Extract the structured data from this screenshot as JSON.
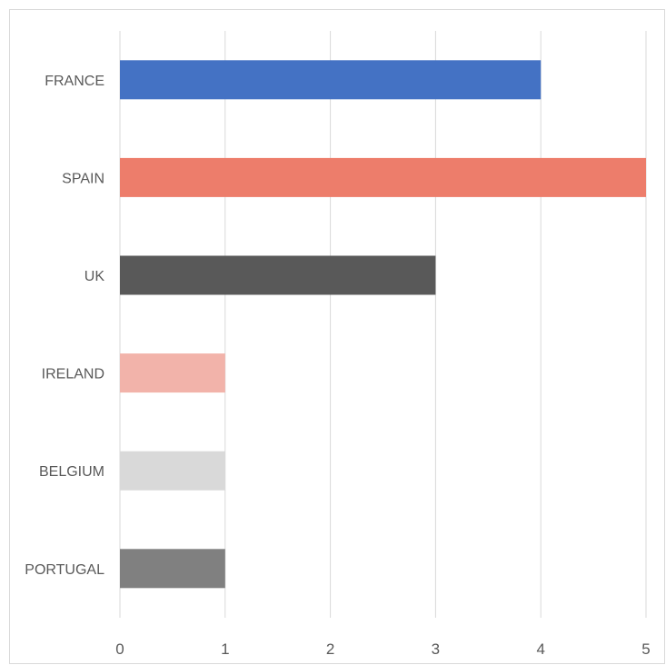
{
  "chart_data": {
    "type": "bar",
    "orientation": "horizontal",
    "title": "",
    "xlabel": "",
    "ylabel": "",
    "categories": [
      "FRANCE",
      "SPAIN",
      "UK",
      "IRELAND",
      "BELGIUM",
      "PORTUGAL"
    ],
    "values": [
      4,
      5,
      3,
      1,
      1,
      1
    ],
    "colors": [
      "#4472C4",
      "#ED7D6B",
      "#595959",
      "#F2B3AA",
      "#D9D9D9",
      "#808080"
    ],
    "xlim": [
      0,
      5
    ],
    "xticks": [
      "0",
      "1",
      "2",
      "3",
      "4",
      "5"
    ],
    "grid": "vertical",
    "legend": "none"
  }
}
